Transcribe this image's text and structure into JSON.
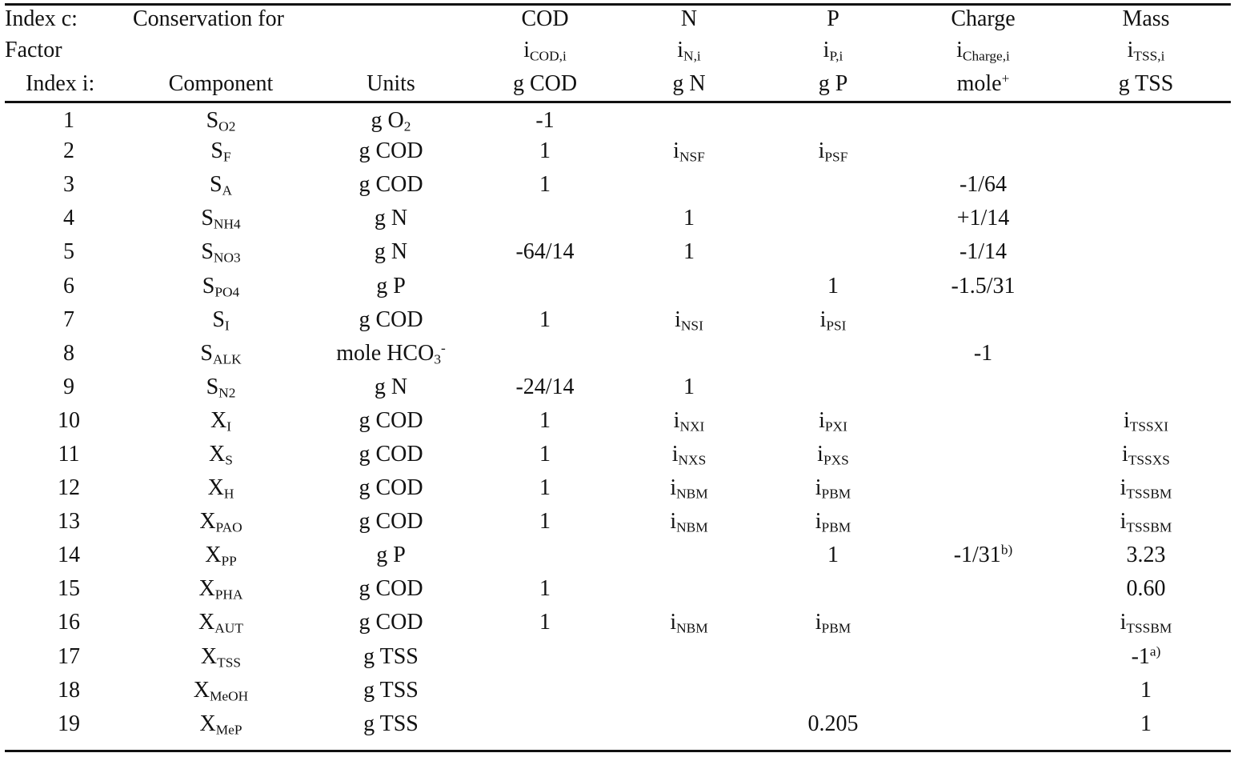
{
  "header": {
    "row1": {
      "index_label": "Index c:",
      "conservation_label": "Conservation for",
      "cod": "COD",
      "n": "N",
      "p": "P",
      "charge": "Charge",
      "mass": "Mass"
    },
    "row2": {
      "factor_label": "Factor",
      "cod_factor": {
        "base": "i",
        "sub": "COD,i"
      },
      "n_factor": {
        "base": "i",
        "sub": "N,i"
      },
      "p_factor": {
        "base": "i",
        "sub": "P,i"
      },
      "charge_factor": {
        "base": "i",
        "sub": "Charge,i"
      },
      "mass_factor": {
        "base": "i",
        "sub": "TSS,i"
      }
    },
    "row3": {
      "index_i_label": "Index i:",
      "component_label": "Component",
      "units_label": "Units",
      "cod_unit": "g COD",
      "n_unit": "g N",
      "p_unit": "g P",
      "charge_unit": {
        "base": "mole",
        "sup": "+"
      },
      "mass_unit": "g TSS"
    }
  },
  "rows": [
    {
      "i": "1",
      "comp": {
        "base": "S",
        "sub": "O2"
      },
      "units": {
        "base": "g O",
        "sub": "2",
        "sup": ""
      },
      "cod": "-1",
      "n": null,
      "p": null,
      "charge": null,
      "mass": null
    },
    {
      "i": "2",
      "comp": {
        "base": "S",
        "sub": "F"
      },
      "units": {
        "base": "g COD"
      },
      "cod": "1",
      "n": {
        "base": "i",
        "sub": "NSF"
      },
      "p": {
        "base": "i",
        "sub": "PSF"
      },
      "charge": null,
      "mass": null
    },
    {
      "i": "3",
      "comp": {
        "base": "S",
        "sub": "A"
      },
      "units": {
        "base": "g COD"
      },
      "cod": "1",
      "n": null,
      "p": null,
      "charge": {
        "base": "-1/64"
      },
      "mass": null
    },
    {
      "i": "4",
      "comp": {
        "base": "S",
        "sub": "NH4"
      },
      "units": {
        "base": "g N"
      },
      "cod": null,
      "n": {
        "base": "1"
      },
      "p": null,
      "charge": {
        "base": "+1/14"
      },
      "mass": null
    },
    {
      "i": "5",
      "comp": {
        "base": "S",
        "sub": "NO3"
      },
      "units": {
        "base": "g N"
      },
      "cod": "-64/14",
      "n": {
        "base": "1"
      },
      "p": null,
      "charge": {
        "base": "-1/14"
      },
      "mass": null
    },
    {
      "i": "6",
      "comp": {
        "base": "S",
        "sub": "PO4"
      },
      "units": {
        "base": "g P"
      },
      "cod": null,
      "n": null,
      "p": {
        "base": "1"
      },
      "charge": {
        "base": "-1.5/31"
      },
      "mass": null
    },
    {
      "i": "7",
      "comp": {
        "base": "S",
        "sub": "I"
      },
      "units": {
        "base": "g COD"
      },
      "cod": "1",
      "n": {
        "base": "i",
        "sub": "NSI"
      },
      "p": {
        "base": "i",
        "sub": "PSI"
      },
      "charge": null,
      "mass": null
    },
    {
      "i": "8",
      "comp": {
        "base": "S",
        "sub": "ALK"
      },
      "units": {
        "base": "mole HCO",
        "sub": "3",
        "sup": "-"
      },
      "cod": null,
      "n": null,
      "p": null,
      "charge": {
        "base": "-1"
      },
      "mass": null
    },
    {
      "i": "9",
      "comp": {
        "base": "S",
        "sub": "N2"
      },
      "units": {
        "base": "g N"
      },
      "cod": "-24/14",
      "n": {
        "base": "1"
      },
      "p": null,
      "charge": null,
      "mass": null
    },
    {
      "i": "10",
      "comp": {
        "base": "X",
        "sub": "I"
      },
      "units": {
        "base": "g COD"
      },
      "cod": "1",
      "n": {
        "base": "i",
        "sub": "NXI"
      },
      "p": {
        "base": "i",
        "sub": "PXI"
      },
      "charge": null,
      "mass": {
        "base": "i",
        "sub": "TSSXI"
      }
    },
    {
      "i": "11",
      "comp": {
        "base": "X",
        "sub": "S"
      },
      "units": {
        "base": "g COD"
      },
      "cod": "1",
      "n": {
        "base": "i",
        "sub": "NXS"
      },
      "p": {
        "base": "i",
        "sub": "PXS"
      },
      "charge": null,
      "mass": {
        "base": "i",
        "sub": "TSSXS"
      }
    },
    {
      "i": "12",
      "comp": {
        "base": "X",
        "sub": "H"
      },
      "units": {
        "base": "g COD"
      },
      "cod": "1",
      "n": {
        "base": "i",
        "sub": "NBM"
      },
      "p": {
        "base": "i",
        "sub": "PBM"
      },
      "charge": null,
      "mass": {
        "base": "i",
        "sub": "TSSBM"
      }
    },
    {
      "i": "13",
      "comp": {
        "base": "X",
        "sub": "PAO"
      },
      "units": {
        "base": "g COD"
      },
      "cod": "1",
      "n": {
        "base": "i",
        "sub": "NBM"
      },
      "p": {
        "base": "i",
        "sub": "PBM"
      },
      "charge": null,
      "mass": {
        "base": "i",
        "sub": "TSSBM"
      }
    },
    {
      "i": "14",
      "comp": {
        "base": "X",
        "sub": "PP"
      },
      "units": {
        "base": "g P"
      },
      "cod": null,
      "n": null,
      "p": {
        "base": "1"
      },
      "charge": {
        "base": "-1/31",
        "sup": "b)"
      },
      "mass": {
        "base": "3.23"
      }
    },
    {
      "i": "15",
      "comp": {
        "base": "X",
        "sub": "PHA"
      },
      "units": {
        "base": "g COD"
      },
      "cod": "1",
      "n": null,
      "p": null,
      "charge": null,
      "mass": {
        "base": "0.60"
      }
    },
    {
      "i": "16",
      "comp": {
        "base": "X",
        "sub": "AUT"
      },
      "units": {
        "base": "g COD"
      },
      "cod": "1",
      "n": {
        "base": "i",
        "sub": "NBM"
      },
      "p": {
        "base": "i",
        "sub": "PBM"
      },
      "charge": null,
      "mass": {
        "base": "i",
        "sub": "TSSBM"
      }
    },
    {
      "i": "17",
      "comp": {
        "base": "X",
        "sub": "TSS"
      },
      "units": {
        "base": "g TSS"
      },
      "cod": null,
      "n": null,
      "p": null,
      "charge": null,
      "mass": {
        "base": "-1",
        "sup": "a)"
      }
    },
    {
      "i": "18",
      "comp": {
        "base": "X",
        "sub": "MeOH"
      },
      "units": {
        "base": "g TSS"
      },
      "cod": null,
      "n": null,
      "p": null,
      "charge": null,
      "mass": {
        "base": "1"
      }
    },
    {
      "i": "19",
      "comp": {
        "base": "X",
        "sub": "MeP"
      },
      "units": {
        "base": "g TSS"
      },
      "cod": null,
      "n": null,
      "p": {
        "base": "0.205"
      },
      "charge": null,
      "mass": {
        "base": "1"
      }
    }
  ]
}
